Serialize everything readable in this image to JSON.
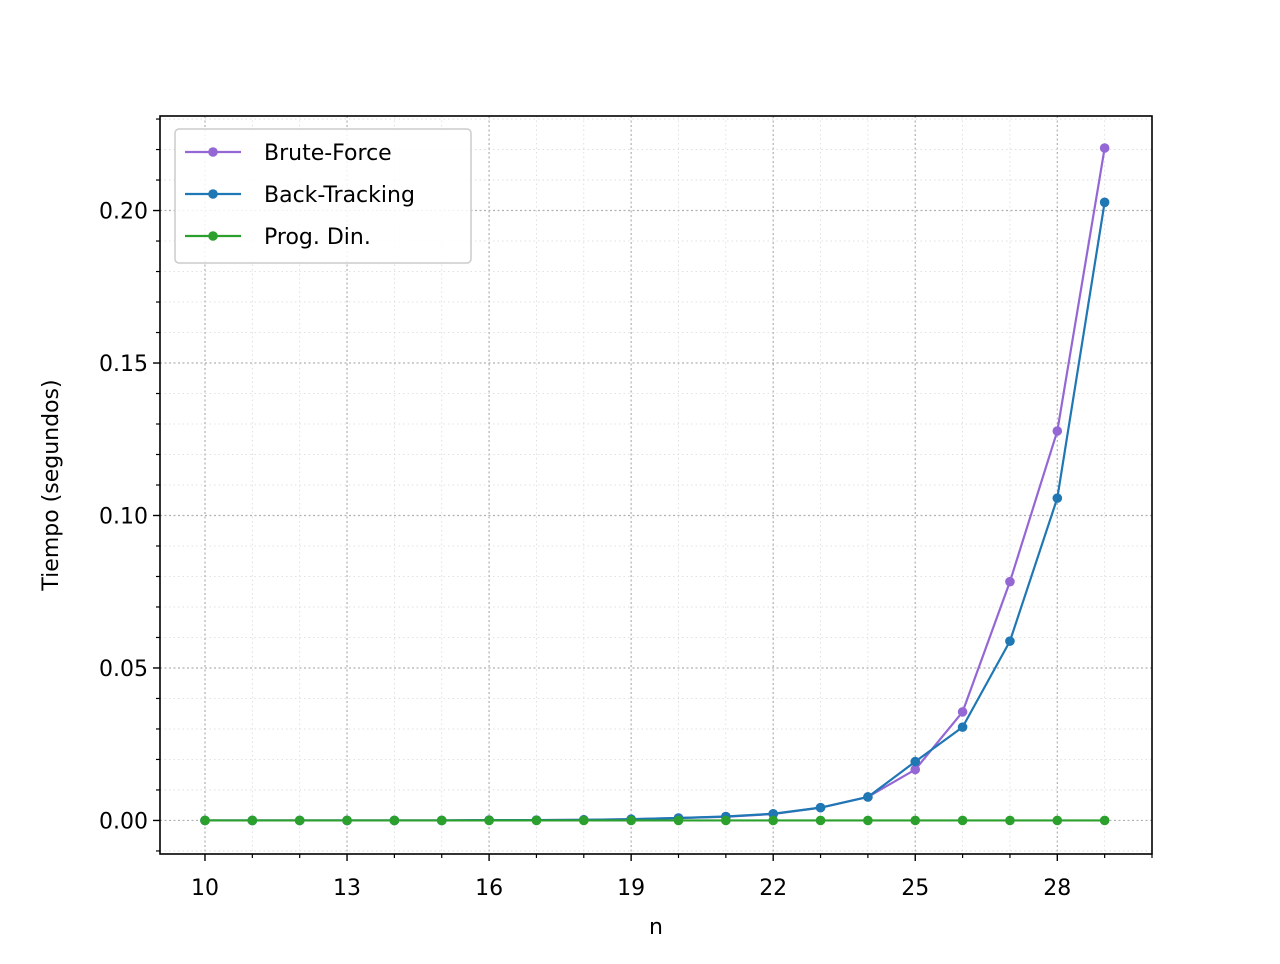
{
  "chart_data": {
    "type": "line",
    "title": "",
    "xlabel": "n",
    "ylabel": "Tiempo (segundos)",
    "xlim": [
      9.05,
      30.0
    ],
    "ylim": [
      -0.011,
      0.231
    ],
    "xticks": [
      10,
      13,
      16,
      19,
      22,
      25,
      28
    ],
    "xtick_labels": [
      "10",
      "13",
      "16",
      "19",
      "22",
      "25",
      "28"
    ],
    "yticks": [
      0.0,
      0.05,
      0.1,
      0.15,
      0.2
    ],
    "ytick_labels": [
      "0.00",
      "0.05",
      "0.10",
      "0.15",
      "0.20"
    ],
    "grid": true,
    "minor_grid": true,
    "legend_position": "upper-left",
    "x": [
      10,
      11,
      12,
      13,
      14,
      15,
      16,
      17,
      18,
      19,
      20,
      21,
      22,
      23,
      24,
      25,
      26,
      27,
      28,
      29
    ],
    "series": [
      {
        "name": "Brute-Force",
        "color": "#9467d5",
        "values": [
          0.0,
          0.0,
          0.0,
          0.0,
          0.0,
          0.0,
          0.0001,
          0.0001,
          0.0002,
          0.0004,
          0.0008,
          0.0012,
          0.0021,
          0.0042,
          0.0077,
          0.0167,
          0.0356,
          0.0783,
          0.1277,
          0.2205
        ]
      },
      {
        "name": "Back-Tracking",
        "color": "#1f77b4",
        "values": [
          0.0,
          0.0,
          0.0,
          0.0,
          0.0,
          0.0,
          0.0001,
          0.0001,
          0.0002,
          0.0004,
          0.0008,
          0.0013,
          0.0022,
          0.0042,
          0.0077,
          0.0193,
          0.0306,
          0.0588,
          0.1057,
          0.2027
        ]
      },
      {
        "name": "Prog. Din.",
        "color": "#2ca02c",
        "values": [
          0.0,
          0.0,
          0.0,
          0.0,
          0.0,
          0.0,
          0.0,
          0.0,
          0.0,
          0.0,
          0.0,
          0.0,
          0.0,
          0.0,
          0.0,
          0.0,
          0.0,
          0.0,
          0.0,
          0.0
        ]
      }
    ]
  }
}
